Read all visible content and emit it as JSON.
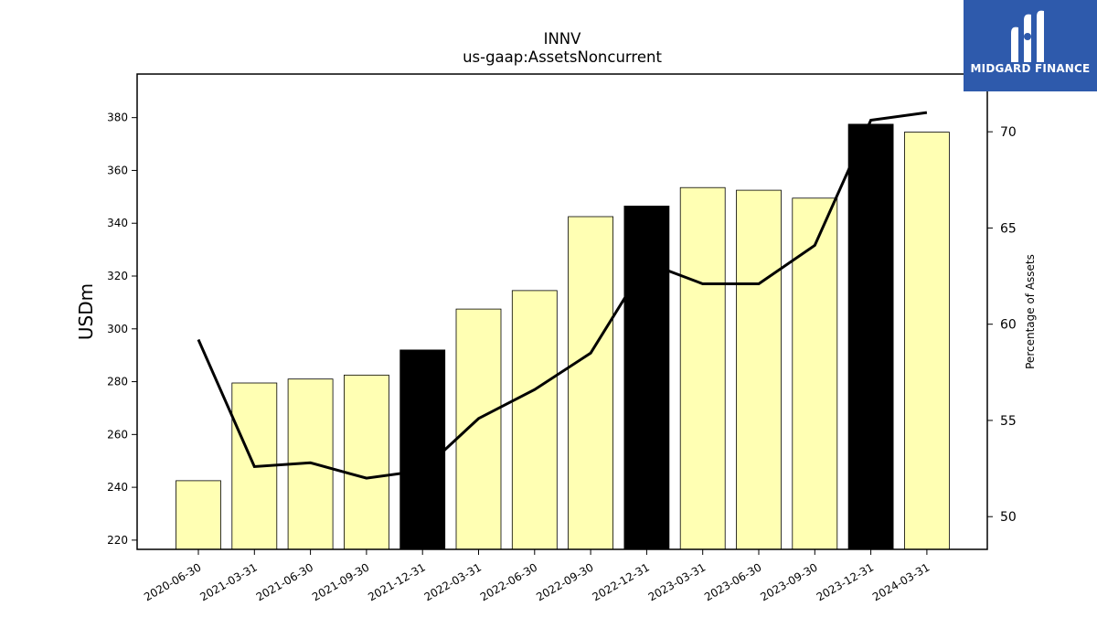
{
  "chart_data": {
    "type": "bar",
    "title": "INNV",
    "subtitle": "us-gaap:AssetsNoncurrent",
    "ylabel": "USDm",
    "y2label": "Percentage of Assets",
    "categories": [
      "2020-06-30",
      "2021-03-31",
      "2021-06-30",
      "2021-09-30",
      "2021-12-31",
      "2022-03-31",
      "2022-06-30",
      "2022-09-30",
      "2022-12-31",
      "2023-03-31",
      "2023-06-30",
      "2023-09-30",
      "2023-12-31",
      "2024-03-31"
    ],
    "values": [
      242.5,
      279.5,
      281,
      282.5,
      292,
      307.5,
      314.5,
      342.5,
      346.5,
      353.5,
      352.5,
      349.5,
      377.5,
      374.5
    ],
    "highlight": [
      false,
      false,
      false,
      false,
      true,
      false,
      false,
      false,
      true,
      false,
      false,
      false,
      true,
      false
    ],
    "line_values": [
      59.2,
      52.6,
      52.8,
      52.0,
      52.4,
      55.1,
      56.6,
      58.5,
      63.2,
      62.1,
      62.1,
      64.1,
      70.6,
      71.0
    ],
    "ylim": [
      216.5,
      396.5
    ],
    "y2lim": [
      48.3,
      73.0
    ],
    "yticks": [
      220,
      240,
      260,
      280,
      300,
      320,
      340,
      360,
      380
    ],
    "y2ticks": [
      50,
      55,
      60,
      65,
      70
    ],
    "colors": {
      "bar": "#ffffb3",
      "bar_highlight": "#000000",
      "line": "#000000"
    }
  },
  "logo": {
    "text": "MIDGARD FINANCE"
  }
}
